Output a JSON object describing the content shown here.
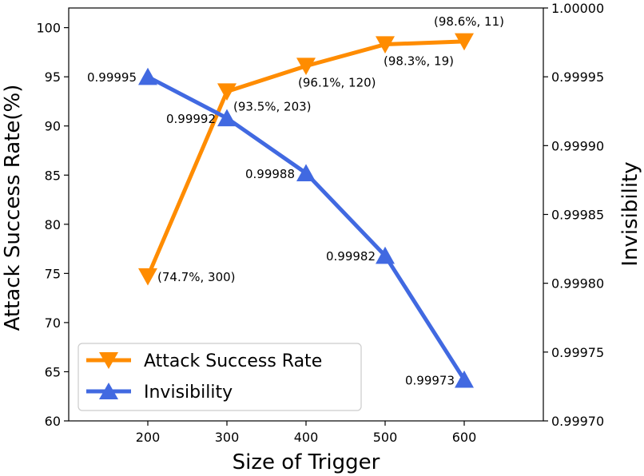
{
  "chart_data": {
    "type": "line",
    "x": [
      200,
      300,
      400,
      500,
      600
    ],
    "xlabel": "Size of Trigger",
    "xlim": [
      100,
      700
    ],
    "xticks": [
      200,
      300,
      400,
      500,
      600
    ],
    "left_axis": {
      "label": "Attack Success Rate(%)",
      "ylim": [
        60,
        102
      ],
      "ticks": [
        60,
        65,
        70,
        75,
        80,
        85,
        90,
        95,
        100
      ]
    },
    "right_axis": {
      "label": "Invisibility",
      "ylim": [
        0.9997,
        1.0
      ],
      "ticks": [
        "0.99970",
        "0.99975",
        "0.99980",
        "0.99985",
        "0.99990",
        "0.99995",
        "1.00000"
      ]
    },
    "series": [
      {
        "name": "Attack Success Rate",
        "axis": "left",
        "color": "#ff8c00",
        "marker": "triangle-down",
        "values": [
          74.7,
          93.5,
          96.1,
          98.3,
          98.6
        ],
        "labels": [
          "(74.7%, 300)",
          "(93.5%, 203)",
          "(96.1%, 120)",
          "(98.3%, 19)",
          "(98.6%, 11)"
        ]
      },
      {
        "name": "Invisibility",
        "axis": "right",
        "color": "#4169e1",
        "marker": "triangle-up",
        "values": [
          0.99995,
          0.99992,
          0.99988,
          0.99982,
          0.99973
        ],
        "labels": [
          "0.99995",
          "0.99992",
          "0.99988",
          "0.99982",
          "0.99973"
        ]
      }
    ],
    "legend": {
      "position": "bottom-left",
      "entries": [
        "Attack Success Rate",
        "Invisibility"
      ]
    },
    "grid": false
  }
}
